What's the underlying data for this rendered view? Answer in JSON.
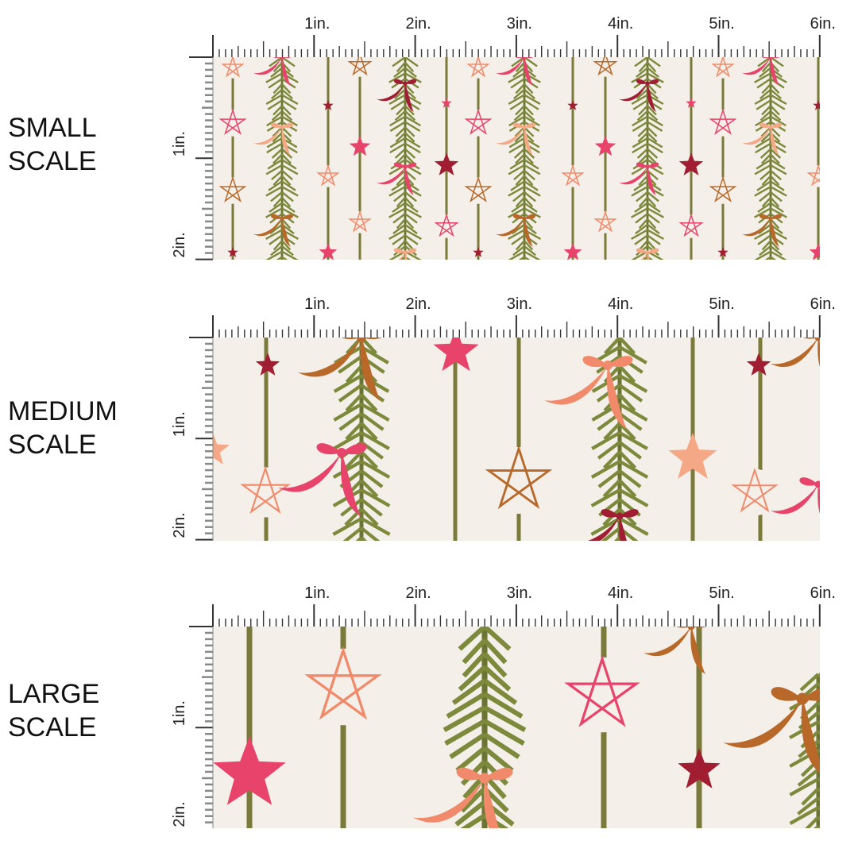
{
  "panels": [
    {
      "id": "small",
      "label_line1": "SMALL",
      "label_line2": "SCALE",
      "scale_factor": 1
    },
    {
      "id": "medium",
      "label_line1": "MEDIUM",
      "label_line2": "SCALE",
      "scale_factor": 2
    },
    {
      "id": "large",
      "label_line1": "LARGE",
      "label_line2": "SCALE",
      "scale_factor": 3
    }
  ],
  "ruler": {
    "horizontal_labels": [
      "1in.",
      "2in.",
      "3in.",
      "4in.",
      "5in.",
      "6in."
    ],
    "vertical_labels": [
      "1in.",
      "2in."
    ]
  },
  "colors": {
    "background": "#f5efe9",
    "stripe": "#7a7a3a",
    "garland": "#7d8a3c",
    "pink": "#e8436a",
    "dark_red": "#a01d32",
    "coral": "#f08a6a",
    "peach": "#f5a886",
    "brown": "#b8692a",
    "tick": "#333333",
    "vtick": "#888888"
  }
}
